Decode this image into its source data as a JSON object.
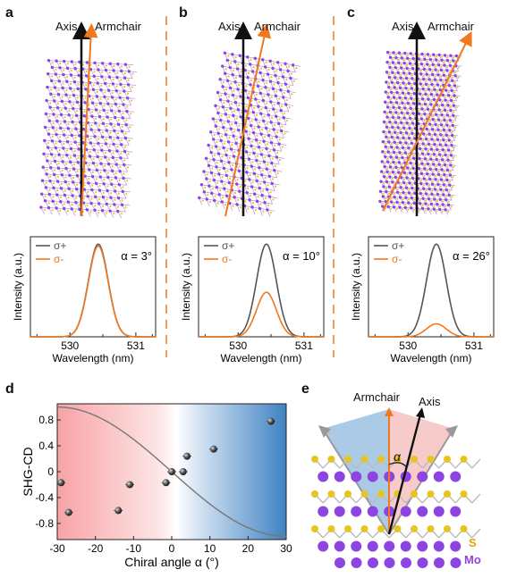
{
  "panels": {
    "a": {
      "label": "a",
      "axis_label": "Axis",
      "armchair_label": "Armchair",
      "alpha_text": "α = 3°",
      "legend_plus": "σ+",
      "legend_minus": "σ-",
      "ylabel": "Intensity (a.u.)",
      "xlabel": "Wavelength (nm)",
      "ticks": [
        "530",
        "531"
      ]
    },
    "b": {
      "label": "b",
      "axis_label": "Axis",
      "armchair_label": "Armchair",
      "alpha_text": "α = 10°",
      "legend_plus": "σ+",
      "legend_minus": "σ-",
      "ylabel": "Intensity (a.u.)",
      "xlabel": "Wavelength (nm)",
      "ticks": [
        "530",
        "531"
      ]
    },
    "c": {
      "label": "c",
      "axis_label": "Axis",
      "armchair_label": "Armchair",
      "alpha_text": "α = 26°",
      "legend_plus": "σ+",
      "legend_minus": "σ-",
      "ylabel": "Intensity (a.u.)",
      "xlabel": "Wavelength (nm)",
      "ticks": [
        "530",
        "531"
      ]
    },
    "d": {
      "label": "d",
      "ylabel": "SHG-CD",
      "xlabel": "Chiral angle α (°)"
    },
    "e": {
      "label": "e",
      "armchair_label": "Armchair",
      "axis_label": "Axis",
      "alpha_label": "α",
      "s_label": "S",
      "mo_label": "Mo"
    }
  },
  "colors": {
    "plus": "#555555",
    "minus": "#f07820",
    "mo": "#8e44e0",
    "s": "#e8c420",
    "armchair": "#f07820",
    "axis": "#111111",
    "divider": "#f07820"
  },
  "chart_data": [
    {
      "type": "line",
      "panel": "a",
      "title": "",
      "xlabel": "Wavelength (nm)",
      "ylabel": "Intensity (a.u.)",
      "xlim": [
        529.4,
        531.3
      ],
      "ylim": [
        0,
        1.08
      ],
      "series": [
        {
          "name": "σ+",
          "peak_x": 530.43,
          "peak": 1.0,
          "width": 0.15
        },
        {
          "name": "σ-",
          "peak_x": 530.43,
          "peak": 0.98,
          "width": 0.15
        }
      ]
    },
    {
      "type": "line",
      "panel": "b",
      "title": "",
      "xlabel": "Wavelength (nm)",
      "ylabel": "Intensity (a.u.)",
      "xlim": [
        529.4,
        531.3
      ],
      "ylim": [
        0,
        1.08
      ],
      "series": [
        {
          "name": "σ+",
          "peak_x": 530.43,
          "peak": 1.0,
          "width": 0.15
        },
        {
          "name": "σ-",
          "peak_x": 530.43,
          "peak": 0.48,
          "width": 0.15
        }
      ]
    },
    {
      "type": "line",
      "panel": "c",
      "title": "",
      "xlabel": "Wavelength (nm)",
      "ylabel": "Intensity (a.u.)",
      "xlim": [
        529.4,
        531.3
      ],
      "ylim": [
        0,
        1.08
      ],
      "series": [
        {
          "name": "σ+",
          "peak_x": 530.43,
          "peak": 1.0,
          "width": 0.15
        },
        {
          "name": "σ-",
          "peak_x": 530.43,
          "peak": 0.14,
          "width": 0.15
        }
      ]
    },
    {
      "type": "scatter",
      "panel": "d",
      "title": "",
      "xlabel": "Chiral angle α (°)",
      "ylabel": "SHG-CD",
      "xlim": [
        -30,
        30
      ],
      "ylim": [
        -1.05,
        1.05
      ],
      "xticks": [
        -30,
        -20,
        -10,
        0,
        10,
        20,
        30
      ],
      "yticks": [
        -0.8,
        -0.4,
        0,
        0.4,
        0.8
      ],
      "points": [
        [
          -29,
          -0.17
        ],
        [
          -27,
          -0.63
        ],
        [
          -14,
          -0.6
        ],
        [
          -11,
          -0.2
        ],
        [
          -1.5,
          -0.17
        ],
        [
          0,
          0.0
        ],
        [
          3,
          0.0
        ],
        [
          4,
          0.24
        ],
        [
          11,
          0.35
        ],
        [
          26,
          0.78
        ]
      ],
      "fit": {
        "func": "-sin(3α)"
      }
    }
  ]
}
